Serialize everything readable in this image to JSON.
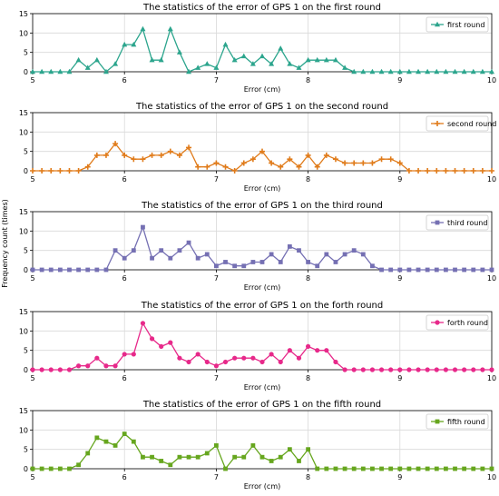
{
  "figure": {
    "ylabel": "Frequency count (times)"
  },
  "chart_data": [
    {
      "type": "line",
      "title": "The statistics of the error of GPS 1 on the first round",
      "xlabel": "Error (cm)",
      "ylabel": "",
      "xlim": [
        5,
        10
      ],
      "ylim": [
        0,
        15
      ],
      "xticks": [
        "5",
        "6",
        "7",
        "8",
        "9",
        "10"
      ],
      "yticks": [
        "0",
        "5",
        "10",
        "15"
      ],
      "grid": true,
      "legend": "top-right",
      "series": [
        {
          "name": "first round",
          "color": "#2ca58d",
          "marker": "triangle",
          "x_start": 5.0,
          "x_step": 0.1,
          "values": [
            0,
            0,
            0,
            0,
            0,
            3,
            1,
            3,
            0,
            2,
            7,
            7,
            11,
            3,
            3,
            11,
            5,
            0,
            1,
            2,
            1,
            7,
            3,
            4,
            2,
            4,
            2,
            6,
            2,
            1,
            3,
            3,
            3,
            3,
            1,
            0,
            0,
            0,
            0,
            0,
            0,
            0,
            0,
            0,
            0,
            0,
            0,
            0,
            0,
            0,
            0
          ]
        }
      ]
    },
    {
      "type": "line",
      "title": "The statistics of the error of GPS 1 on the second round",
      "xlabel": "Error (cm)",
      "ylabel": "",
      "xlim": [
        5,
        10
      ],
      "ylim": [
        0,
        15
      ],
      "xticks": [
        "5",
        "6",
        "7",
        "8",
        "9",
        "10"
      ],
      "yticks": [
        "0",
        "5",
        "10",
        "15"
      ],
      "grid": true,
      "legend": "top-right",
      "series": [
        {
          "name": "second round",
          "color": "#e07b1a",
          "marker": "plus",
          "x_start": 5.0,
          "x_step": 0.1,
          "values": [
            0,
            0,
            0,
            0,
            0,
            0,
            1,
            4,
            4,
            7,
            4,
            3,
            3,
            4,
            4,
            5,
            4,
            6,
            1,
            1,
            2,
            1,
            0,
            2,
            3,
            5,
            2,
            1,
            3,
            1,
            4,
            1,
            4,
            3,
            2,
            2,
            2,
            2,
            3,
            3,
            2,
            0,
            0,
            0,
            0,
            0,
            0,
            0,
            0,
            0,
            0
          ]
        }
      ]
    },
    {
      "type": "line",
      "title": "The statistics of the error of GPS 1 on the third round",
      "xlabel": "Error (cm)",
      "ylabel": "",
      "xlim": [
        5,
        10
      ],
      "ylim": [
        0,
        15
      ],
      "xticks": [
        "5",
        "6",
        "7",
        "8",
        "9",
        "10"
      ],
      "yticks": [
        "0",
        "5",
        "10",
        "15"
      ],
      "grid": true,
      "legend": "top-right",
      "series": [
        {
          "name": "third round",
          "color": "#7570b3",
          "marker": "square",
          "x_start": 5.0,
          "x_step": 0.1,
          "values": [
            0,
            0,
            0,
            0,
            0,
            0,
            0,
            0,
            0,
            5,
            3,
            5,
            11,
            3,
            5,
            3,
            5,
            7,
            3,
            4,
            1,
            2,
            1,
            1,
            2,
            2,
            4,
            2,
            6,
            5,
            2,
            1,
            4,
            2,
            4,
            5,
            4,
            1,
            0,
            0,
            0,
            0,
            0,
            0,
            0,
            0,
            0,
            0,
            0,
            0,
            0
          ]
        }
      ]
    },
    {
      "type": "line",
      "title": "The statistics of the error of GPS 1 on the forth round",
      "xlabel": "Error (cm)",
      "ylabel": "",
      "xlim": [
        5,
        10
      ],
      "ylim": [
        0,
        15
      ],
      "xticks": [
        "5",
        "6",
        "7",
        "8",
        "9",
        "10"
      ],
      "yticks": [
        "0",
        "5",
        "10",
        "15"
      ],
      "grid": true,
      "legend": "top-right",
      "series": [
        {
          "name": "forth round",
          "color": "#e7298a",
          "marker": "circle",
          "x_start": 5.0,
          "x_step": 0.1,
          "values": [
            0,
            0,
            0,
            0,
            0,
            1,
            1,
            3,
            1,
            1,
            4,
            4,
            12,
            8,
            6,
            7,
            3,
            2,
            4,
            2,
            1,
            2,
            3,
            3,
            3,
            2,
            4,
            2,
            5,
            3,
            6,
            5,
            5,
            2,
            0,
            0,
            0,
            0,
            0,
            0,
            0,
            0,
            0,
            0,
            0,
            0,
            0,
            0,
            0,
            0,
            0
          ]
        }
      ]
    },
    {
      "type": "line",
      "title": "The statistics of the error of GPS 1 on the fifth round",
      "xlabel": "Error (cm)",
      "ylabel": "",
      "xlim": [
        5,
        10
      ],
      "ylim": [
        0,
        15
      ],
      "xticks": [
        "5",
        "6",
        "7",
        "8",
        "9",
        "10"
      ],
      "yticks": [
        "0",
        "5",
        "10",
        "15"
      ],
      "grid": true,
      "legend": "top-right",
      "series": [
        {
          "name": "fifth round",
          "color": "#66a61e",
          "marker": "square",
          "x_start": 5.0,
          "x_step": 0.1,
          "values": [
            0,
            0,
            0,
            0,
            0,
            1,
            4,
            8,
            7,
            6,
            9,
            7,
            3,
            3,
            2,
            1,
            3,
            3,
            3,
            4,
            6,
            0,
            3,
            3,
            6,
            3,
            2,
            3,
            5,
            2,
            5,
            0,
            0,
            0,
            0,
            0,
            0,
            0,
            0,
            0,
            0,
            0,
            0,
            0,
            0,
            0,
            0,
            0,
            0,
            0,
            0
          ]
        }
      ]
    }
  ]
}
